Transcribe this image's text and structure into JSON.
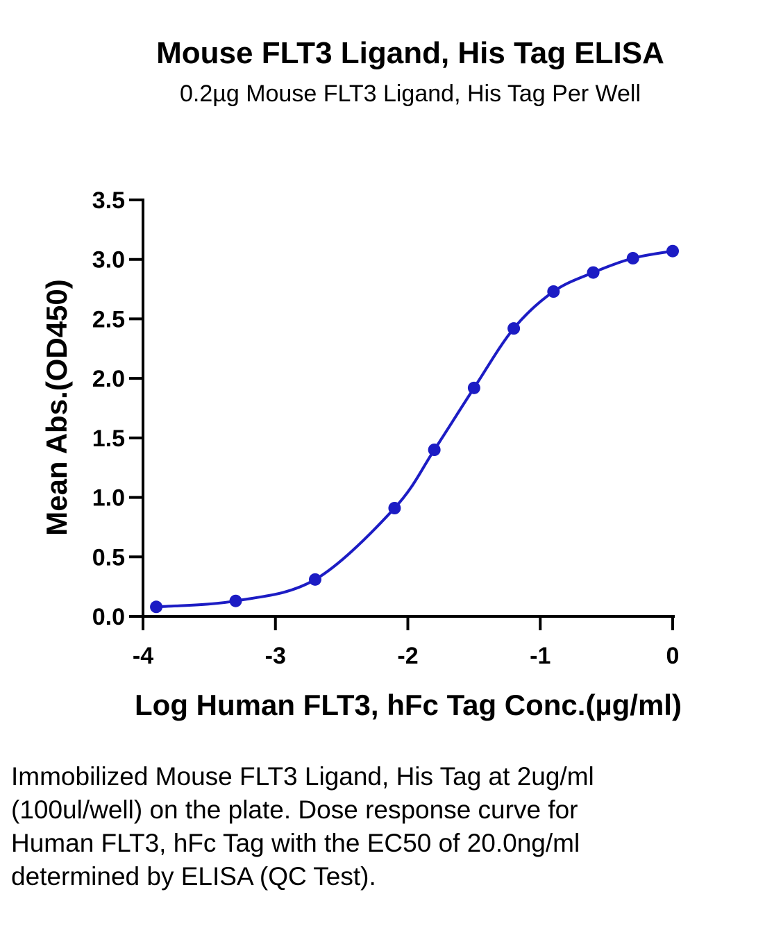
{
  "chart_data": {
    "type": "scatter",
    "title": "Mouse FLT3 Ligand, His Tag ELISA",
    "subtitle": "0.2µg Mouse FLT3 Ligand, His Tag Per Well",
    "xlabel": "Log Human FLT3, hFc Tag Conc.(µg/ml)",
    "ylabel": "Mean Abs.(OD450)",
    "xlim": [
      -4,
      0
    ],
    "ylim": [
      0,
      3.5
    ],
    "x_ticks": [
      -4,
      -3,
      -2,
      -1,
      0
    ],
    "x_tick_labels": [
      "-4",
      "-3",
      "-2",
      "-1",
      "0"
    ],
    "y_ticks": [
      0.0,
      0.5,
      1.0,
      1.5,
      2.0,
      2.5,
      3.0,
      3.5
    ],
    "y_tick_labels": [
      "0.0",
      "0.5",
      "1.0",
      "1.5",
      "2.0",
      "2.5",
      "3.0",
      "3.5"
    ],
    "grid": false,
    "series": [
      {
        "x": [
          -3.9,
          -3.3,
          -2.7,
          -2.1,
          -1.8,
          -1.5,
          -1.2,
          -0.9,
          -0.6,
          -0.3,
          0.0
        ],
        "y": [
          0.08,
          0.13,
          0.31,
          0.91,
          1.4,
          1.92,
          2.42,
          2.73,
          2.89,
          3.01,
          3.07
        ],
        "color": "#1c1cc4",
        "fit": "four-parameter logistic"
      }
    ]
  },
  "caption": "Immobilized Mouse FLT3 Ligand, His Tag at 2ug/ml (100ul/well) on the plate. Dose response curve for Human FLT3, hFc Tag with the EC50 of 20.0ng/ml determined by ELISA (QC Test)."
}
